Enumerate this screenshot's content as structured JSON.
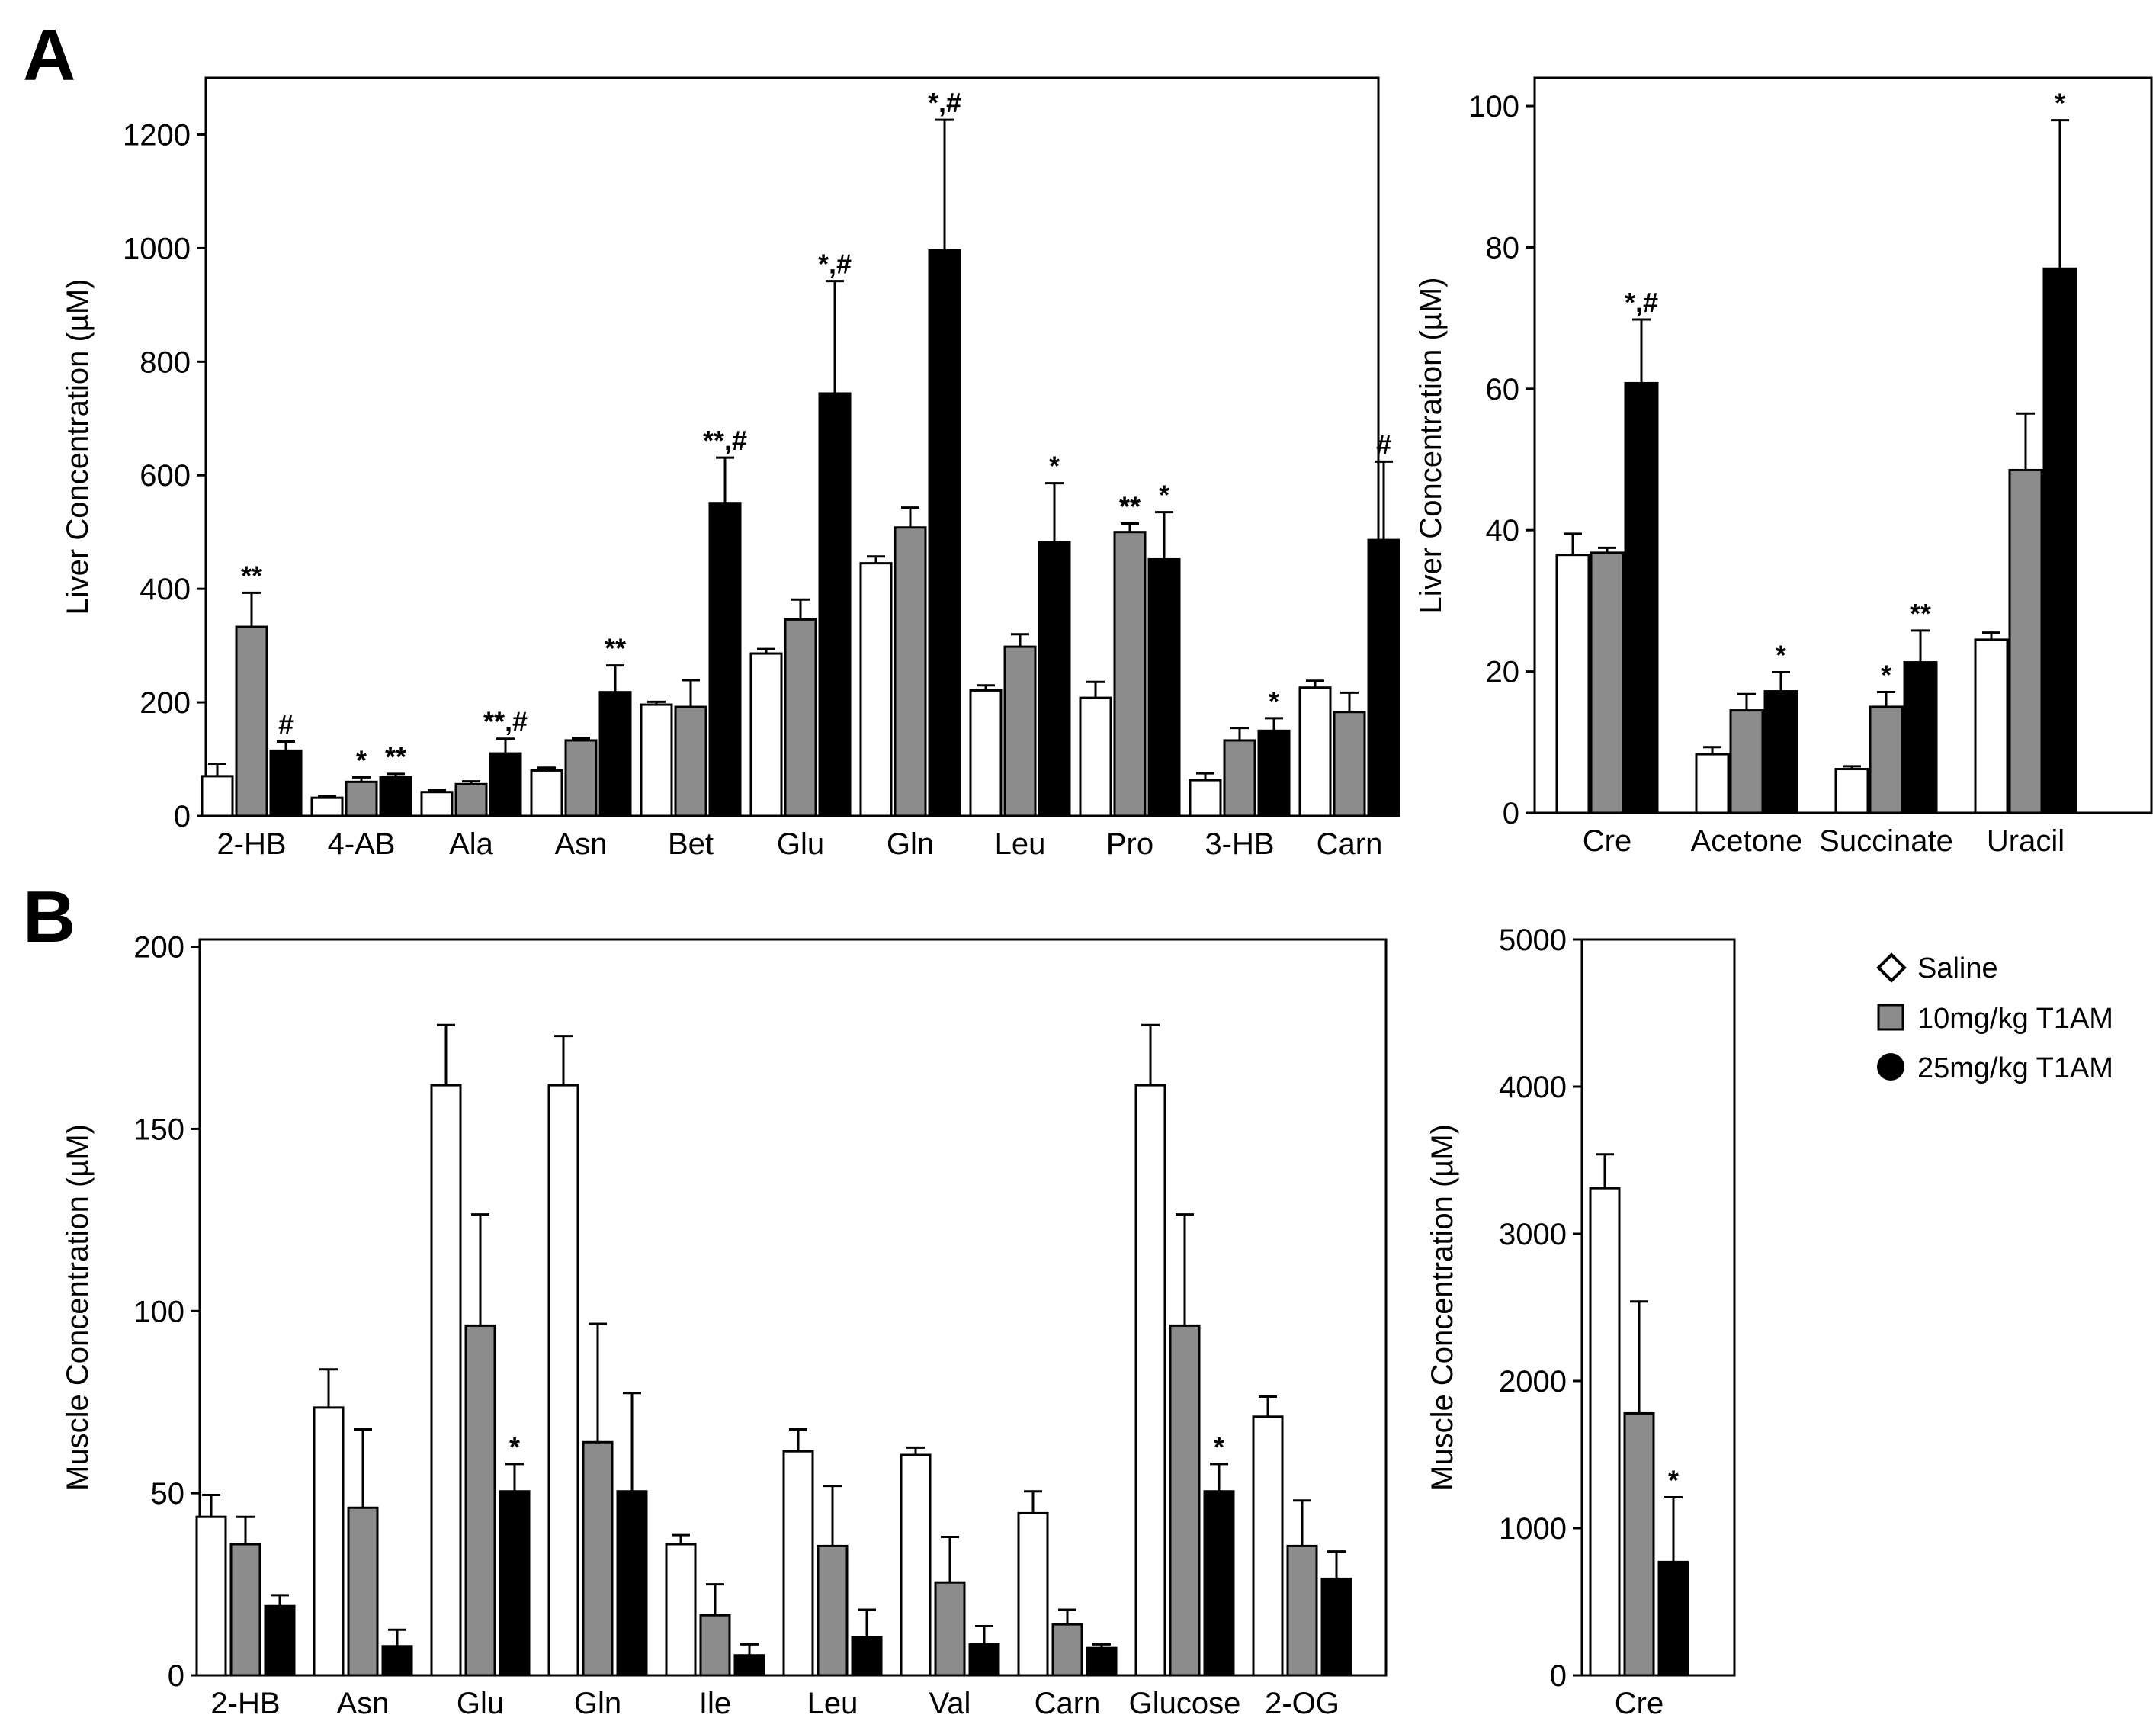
{
  "panel_labels": [
    "A",
    "B"
  ],
  "legend": [
    {
      "label": "Saline",
      "marker": "diamond",
      "color": "#ffffff"
    },
    {
      "label": "10mg/kg T1AM",
      "marker": "square",
      "color": "#8c8c8c"
    },
    {
      "label": "25mg/kg T1AM",
      "marker": "circle",
      "color": "#000000"
    }
  ],
  "colors": {
    "saline": "#ffffff",
    "low": "#8c8c8c",
    "high": "#000000",
    "axis": "#000000"
  },
  "chart_data": [
    {
      "id": "liver-left",
      "type": "bar",
      "panel": "A",
      "ylabel": "Liver Concentration (µM)",
      "ylim": [
        0,
        1300
      ],
      "yticks": [
        0,
        200,
        400,
        600,
        800,
        1000,
        1200
      ],
      "categories": [
        "2-HB",
        "4-AB",
        "Ala",
        "Asn",
        "Bet",
        "Glu",
        "Gln",
        "Leu",
        "Pro",
        "3-HB",
        "Carn"
      ],
      "series": [
        {
          "name": "Saline",
          "values": [
            70,
            32,
            42,
            80,
            196,
            286,
            445,
            221,
            208,
            63,
            226
          ],
          "errors": [
            22,
            3,
            3,
            5,
            5,
            8,
            12,
            9,
            28,
            12,
            12
          ]
        },
        {
          "name": "10mg/kg T1AM",
          "values": [
            333,
            60,
            56,
            133,
            192,
            346,
            508,
            298,
            500,
            133,
            183
          ],
          "errors": [
            60,
            8,
            5,
            4,
            47,
            35,
            35,
            22,
            15,
            22,
            34
          ]
        },
        {
          "name": "25mg/kg T1AM",
          "values": [
            115,
            68,
            110,
            218,
            551,
            744,
            996,
            482,
            452,
            150,
            486
          ],
          "errors": [
            16,
            6,
            26,
            47,
            80,
            198,
            230,
            104,
            83,
            22,
            138
          ]
        }
      ],
      "annotations": [
        [
          "",
          "**",
          "#"
        ],
        [
          "",
          "*",
          "**"
        ],
        [
          "",
          "",
          "**,#"
        ],
        [
          "",
          "",
          "**"
        ],
        [
          "",
          "",
          "**,#"
        ],
        [
          "",
          "",
          "*,#"
        ],
        [
          "",
          "",
          "*,#"
        ],
        [
          "",
          "",
          "*"
        ],
        [
          "",
          "**",
          "*"
        ],
        [
          "",
          "",
          "*"
        ],
        [
          "",
          "",
          "#"
        ]
      ]
    },
    {
      "id": "liver-right",
      "type": "bar",
      "panel": "A",
      "ylabel": "Liver Concentration (µM)",
      "ylim": [
        0,
        104
      ],
      "yticks": [
        0,
        20,
        40,
        60,
        80,
        100
      ],
      "categories": [
        "Cre",
        "Acetone",
        "Succinate",
        "Uracil"
      ],
      "series": [
        {
          "name": "Saline",
          "values": [
            36.5,
            8.3,
            6.2,
            24.5
          ],
          "errors": [
            3,
            1,
            0.4,
            1
          ]
        },
        {
          "name": "10mg/kg T1AM",
          "values": [
            36.8,
            14.5,
            15,
            48.5
          ],
          "errors": [
            0.7,
            2.3,
            2.1,
            8
          ]
        },
        {
          "name": "25mg/kg T1AM",
          "values": [
            60.8,
            17.2,
            21.3,
            77
          ],
          "errors": [
            9,
            2.7,
            4.5,
            21
          ]
        }
      ],
      "annotations": [
        [
          "",
          "",
          "*,#"
        ],
        [
          "",
          "",
          "*"
        ],
        [
          "",
          "*",
          "**"
        ],
        [
          "",
          "",
          "*"
        ]
      ]
    },
    {
      "id": "muscle-left",
      "type": "bar",
      "panel": "B",
      "ylabel": "Muscle Concentration (µM)",
      "ylim": [
        0,
        202
      ],
      "yticks": [
        0,
        50,
        100,
        150,
        200
      ],
      "categories": [
        "2-HB",
        "Asn",
        "Glu",
        "Gln",
        "Ile",
        "Leu",
        "Val",
        "Carn",
        "Glucose",
        "2-OG"
      ],
      "series": [
        {
          "name": "Saline",
          "values": [
            43.5,
            73.5,
            162,
            162,
            36,
            61.5,
            60.5,
            44.5,
            162,
            71
          ],
          "errors": [
            6,
            10.5,
            16.5,
            13.5,
            2.5,
            6,
            2,
            6,
            16.5,
            5.5
          ]
        },
        {
          "name": "10mg/kg T1AM",
          "values": [
            36,
            46,
            96,
            64,
            16.5,
            35.5,
            25.5,
            14,
            96,
            35.5
          ],
          "errors": [
            7.5,
            21.5,
            30.5,
            32.5,
            8.5,
            16.5,
            12.5,
            4,
            30.5,
            12.5
          ]
        },
        {
          "name": "25mg/kg T1AM",
          "values": [
            19,
            8,
            50.5,
            50.5,
            5.5,
            10.5,
            8.5,
            7.5,
            50.5,
            26.5
          ],
          "errors": [
            3,
            4.5,
            7.5,
            27,
            3,
            7.5,
            5,
            1,
            7.5,
            7.5
          ]
        }
      ],
      "annotations": [
        [
          "",
          "",
          ""
        ],
        [
          "",
          "",
          ""
        ],
        [
          "",
          "",
          "*"
        ],
        [
          "",
          "",
          ""
        ],
        [
          "",
          "",
          ""
        ],
        [
          "",
          "",
          ""
        ],
        [
          "",
          "",
          ""
        ],
        [
          "",
          "",
          ""
        ],
        [
          "",
          "",
          "*"
        ],
        [
          "",
          "",
          ""
        ]
      ]
    },
    {
      "id": "muscle-right",
      "type": "bar",
      "panel": "B",
      "ylabel": "Muscle Concentration (µM)",
      "ylim": [
        0,
        5000
      ],
      "yticks": [
        0,
        1000,
        2000,
        3000,
        4000,
        5000
      ],
      "categories": [
        "Cre"
      ],
      "series": [
        {
          "name": "Saline",
          "values": [
            3310
          ],
          "errors": [
            230
          ]
        },
        {
          "name": "10mg/kg T1AM",
          "values": [
            1780
          ],
          "errors": [
            760
          ]
        },
        {
          "name": "25mg/kg T1AM",
          "values": [
            770
          ],
          "errors": [
            440
          ]
        }
      ],
      "annotations": [
        [
          "",
          "",
          "*"
        ]
      ]
    }
  ]
}
